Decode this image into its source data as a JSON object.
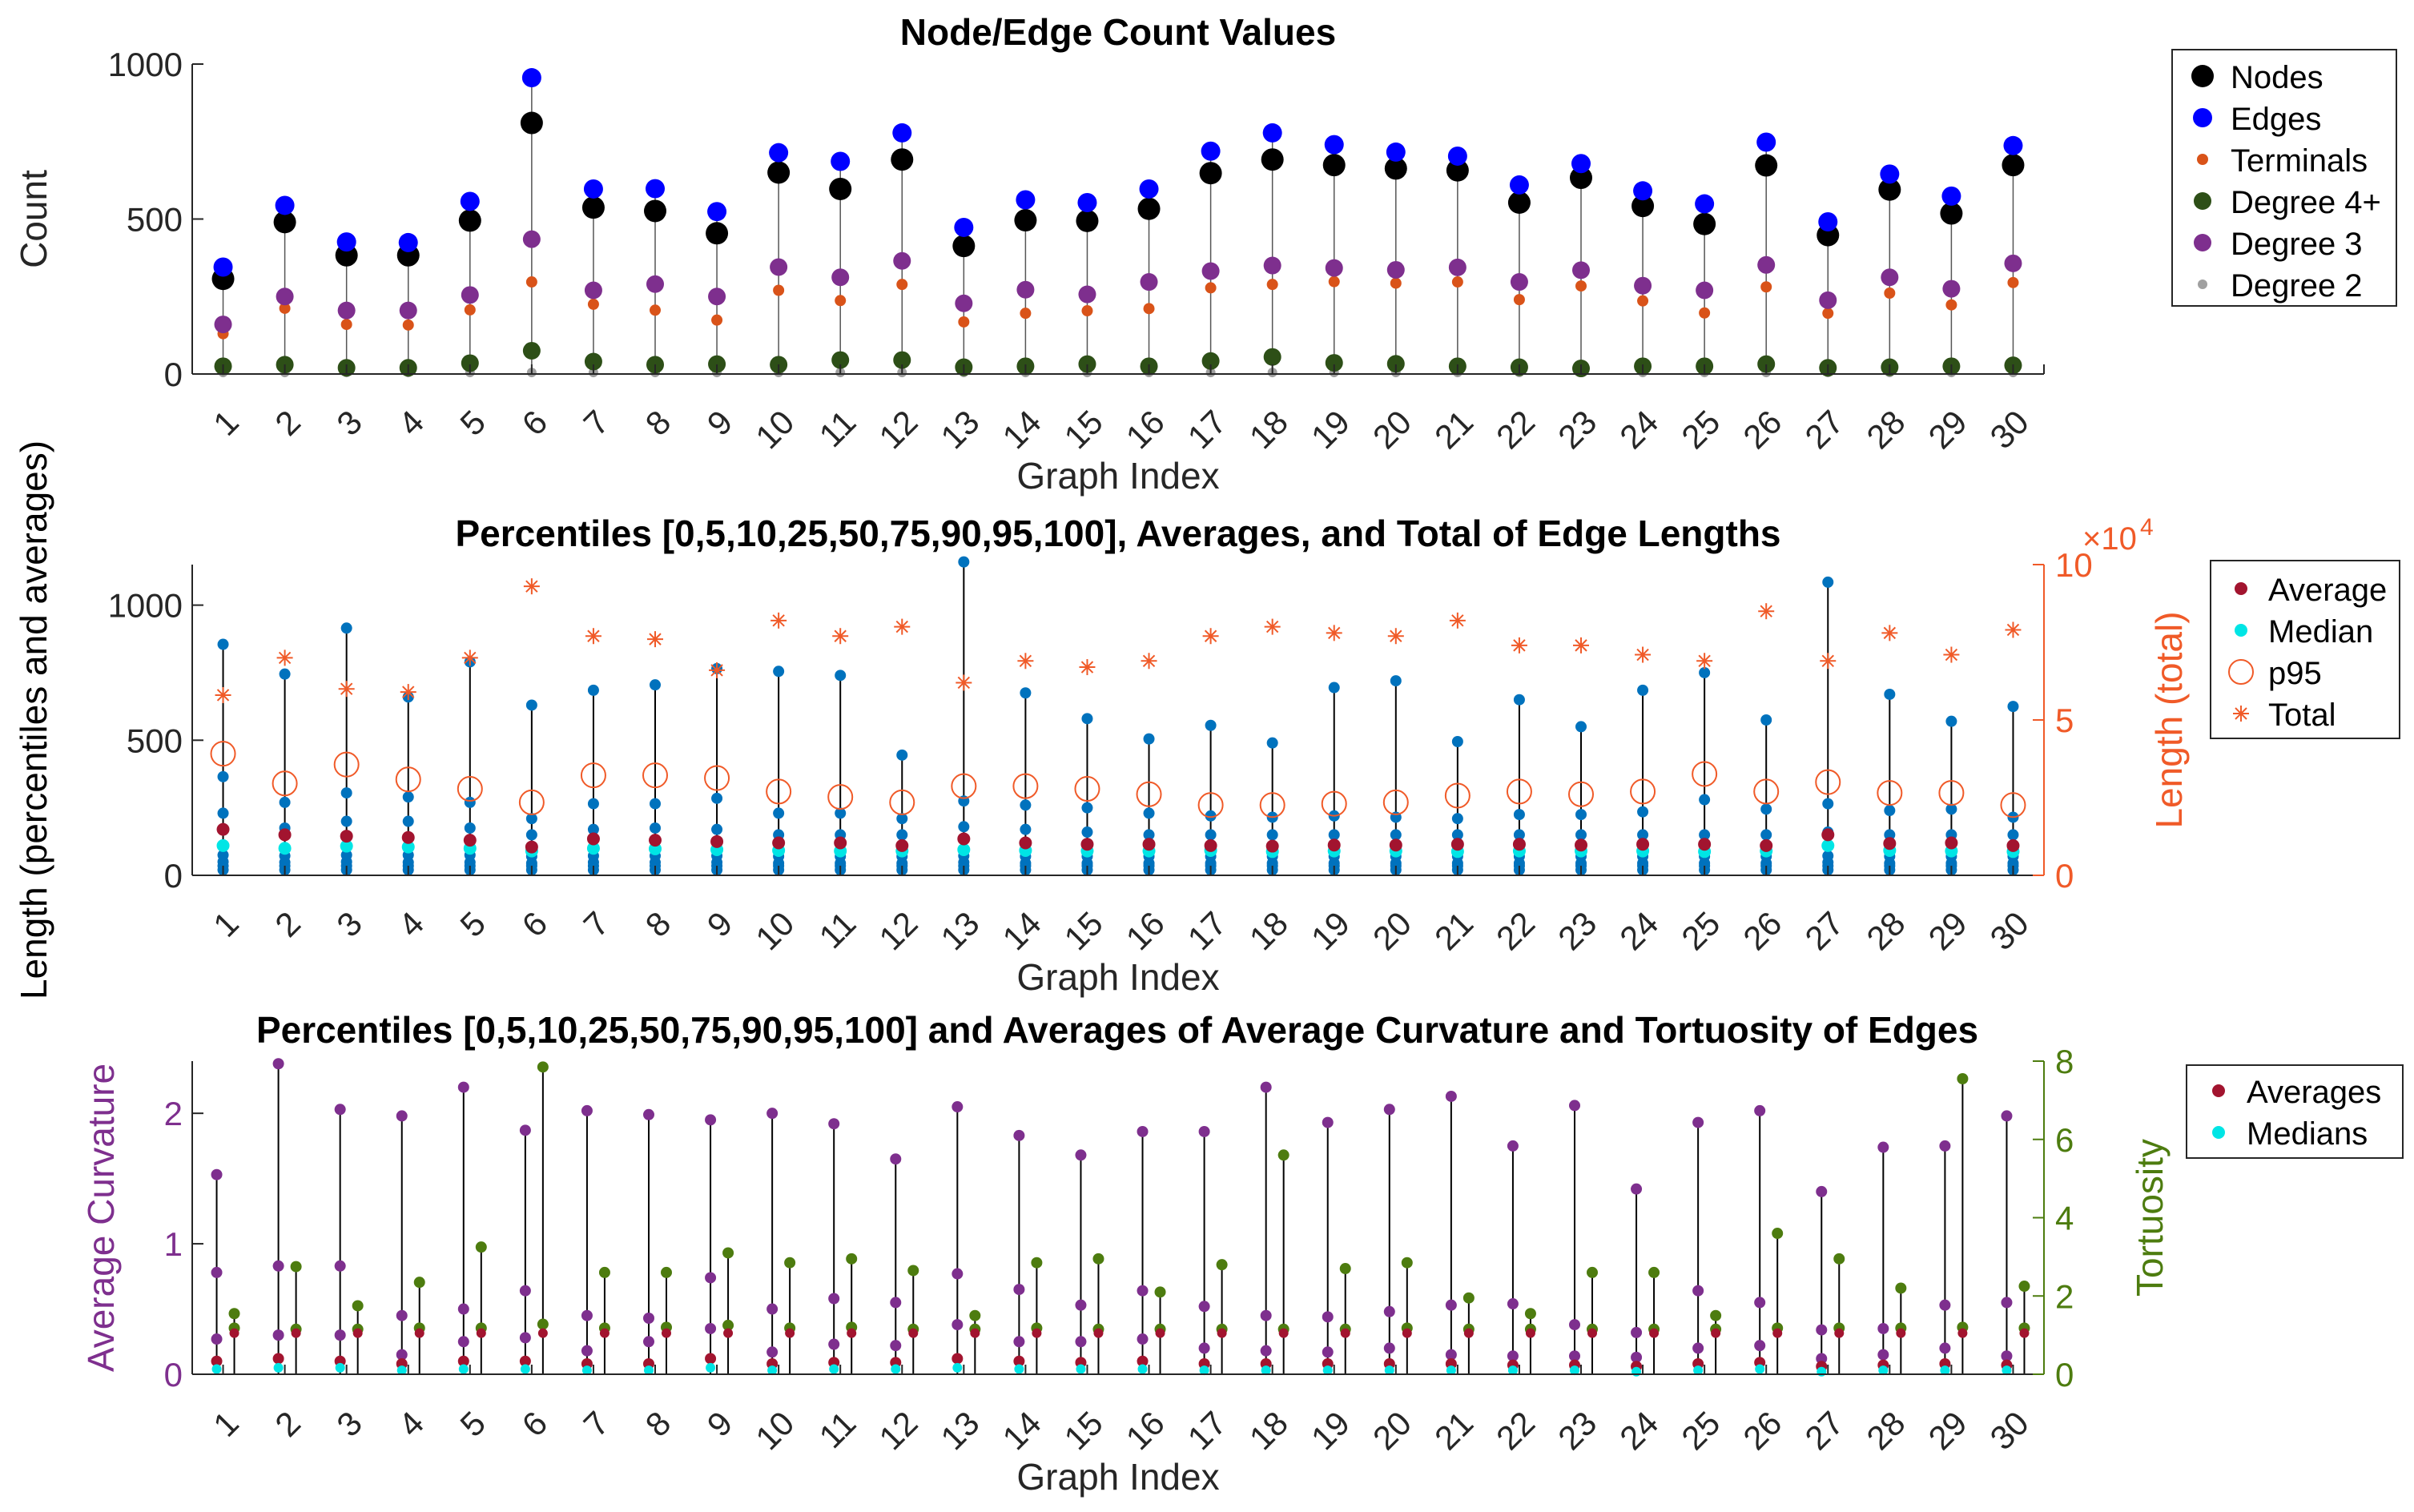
{
  "chart_data": [
    {
      "type": "scatter",
      "title": "Node/Edge Count Values",
      "xlabel": "Graph Index",
      "ylabel": "Count",
      "ylim": [
        0,
        1000
      ],
      "yticks": [
        0,
        500,
        1000
      ],
      "categories": [
        "1",
        "2",
        "3",
        "4",
        "5",
        "6",
        "7",
        "8",
        "9",
        "10",
        "11",
        "12",
        "13",
        "14",
        "15",
        "16",
        "17",
        "18",
        "19",
        "20",
        "21",
        "22",
        "23",
        "24",
        "25",
        "26",
        "27",
        "28",
        "29",
        "30"
      ],
      "legend": [
        "Nodes",
        "Edges",
        "Terminals",
        "Degree 4+",
        "Degree 3",
        "Degree 2"
      ],
      "series": [
        {
          "name": "Nodes",
          "color": "#000000",
          "values": [
            307,
            490,
            383,
            383,
            495,
            810,
            537,
            526,
            454,
            650,
            597,
            692,
            413,
            496,
            494,
            533,
            648,
            692,
            674,
            663,
            657,
            553,
            633,
            542,
            484,
            673,
            448,
            595,
            518,
            674
          ]
        },
        {
          "name": "Edges",
          "color": "#0000ff",
          "values": [
            345,
            544,
            426,
            424,
            557,
            956,
            597,
            598,
            524,
            714,
            686,
            778,
            473,
            562,
            553,
            597,
            719,
            778,
            740,
            716,
            703,
            610,
            679,
            591,
            549,
            748,
            491,
            645,
            574,
            737
          ]
        },
        {
          "name": "Terminals",
          "color": "#d95319",
          "values": [
            130,
            212,
            160,
            158,
            207,
            297,
            225,
            206,
            174,
            270,
            237,
            289,
            168,
            196,
            204,
            211,
            278,
            289,
            298,
            293,
            297,
            240,
            284,
            236,
            197,
            281,
            196,
            261,
            223,
            295
          ]
        },
        {
          "name": "Degree 4+",
          "color": "#2d4f17",
          "values": [
            25,
            30,
            20,
            20,
            35,
            75,
            40,
            30,
            32,
            30,
            45,
            45,
            22,
            25,
            32,
            25,
            42,
            55,
            36,
            33,
            25,
            22,
            18,
            25,
            25,
            32,
            20,
            22,
            25,
            28
          ]
        },
        {
          "name": "Degree 3",
          "color": "#7e2f8e",
          "values": [
            160,
            250,
            205,
            205,
            255,
            435,
            270,
            290,
            250,
            345,
            312,
            365,
            228,
            272,
            257,
            297,
            332,
            350,
            342,
            336,
            344,
            297,
            335,
            285,
            270,
            352,
            238,
            312,
            275,
            357
          ]
        },
        {
          "name": "Degree 2",
          "color": "#a0a0a0",
          "values": [
            5,
            5,
            5,
            5,
            5,
            5,
            5,
            5,
            5,
            5,
            5,
            5,
            5,
            5,
            5,
            5,
            5,
            5,
            5,
            5,
            5,
            5,
            5,
            5,
            5,
            5,
            5,
            5,
            5,
            5
          ]
        }
      ]
    },
    {
      "type": "scatter",
      "title": "Percentiles [0,5,10,25,50,75,90,95,100], Averages, and Total of Edge Lengths",
      "xlabel": "Graph Index",
      "ylabel": "Length (percentiles and averages)",
      "ylabel_right": "Length (total)",
      "ylim": [
        0,
        1150
      ],
      "yticks": [
        0,
        500,
        1000
      ],
      "ylim_right": [
        0,
        10
      ],
      "yticks_right": [
        0,
        5,
        10
      ],
      "right_exponent": "×10",
      "right_exponent_power": "4",
      "categories": [
        "1",
        "2",
        "3",
        "4",
        "5",
        "6",
        "7",
        "8",
        "9",
        "10",
        "11",
        "12",
        "13",
        "14",
        "15",
        "16",
        "17",
        "18",
        "19",
        "20",
        "21",
        "22",
        "23",
        "24",
        "25",
        "26",
        "27",
        "28",
        "29",
        "30"
      ],
      "legend": [
        "Average",
        "Median",
        "p95",
        "Total"
      ],
      "percentile_marker_color": "#0072bd",
      "series": [
        {
          "name": "p0",
          "values": [
            20,
            20,
            20,
            20,
            20,
            20,
            20,
            20,
            20,
            20,
            20,
            20,
            20,
            20,
            20,
            20,
            20,
            20,
            20,
            20,
            20,
            20,
            20,
            20,
            20,
            20,
            20,
            20,
            20,
            20
          ]
        },
        {
          "name": "p5",
          "values": [
            35,
            35,
            35,
            35,
            35,
            35,
            35,
            35,
            35,
            35,
            35,
            35,
            35,
            35,
            35,
            35,
            35,
            35,
            35,
            35,
            35,
            35,
            35,
            35,
            35,
            35,
            35,
            35,
            35,
            35
          ]
        },
        {
          "name": "p10",
          "values": [
            50,
            48,
            50,
            48,
            48,
            45,
            48,
            48,
            48,
            45,
            45,
            45,
            48,
            45,
            45,
            45,
            45,
            45,
            45,
            45,
            45,
            45,
            45,
            45,
            45,
            45,
            48,
            45,
            45,
            45
          ]
        },
        {
          "name": "p25",
          "values": [
            75,
            72,
            75,
            75,
            75,
            70,
            72,
            72,
            72,
            70,
            70,
            70,
            72,
            70,
            70,
            70,
            70,
            70,
            70,
            70,
            70,
            70,
            70,
            70,
            70,
            70,
            72,
            70,
            70,
            70
          ]
        },
        {
          "name": "p50",
          "color": "#00e5e5",
          "values": [
            110,
            100,
            108,
            105,
            100,
            90,
            100,
            98,
            95,
            92,
            90,
            90,
            95,
            92,
            90,
            90,
            92,
            88,
            90,
            90,
            88,
            90,
            90,
            90,
            88,
            90,
            110,
            92,
            90,
            88
          ]
        },
        {
          "name": "p75",
          "values": [
            230,
            175,
            200,
            200,
            175,
            150,
            170,
            175,
            170,
            150,
            150,
            150,
            180,
            170,
            160,
            150,
            150,
            150,
            150,
            150,
            150,
            150,
            150,
            150,
            150,
            150,
            160,
            150,
            150,
            150
          ]
        },
        {
          "name": "p90",
          "values": [
            365,
            270,
            305,
            290,
            270,
            210,
            265,
            265,
            285,
            230,
            230,
            210,
            275,
            260,
            250,
            230,
            220,
            215,
            220,
            215,
            210,
            225,
            225,
            235,
            280,
            245,
            265,
            240,
            245,
            215
          ]
        },
        {
          "name": "p95",
          "color": "#f05a28",
          "values": [
            450,
            340,
            410,
            355,
            320,
            270,
            370,
            370,
            360,
            310,
            290,
            270,
            330,
            330,
            320,
            300,
            260,
            260,
            265,
            270,
            295,
            310,
            300,
            310,
            375,
            310,
            345,
            305,
            305,
            260
          ]
        },
        {
          "name": "p100",
          "values": [
            855,
            745,
            915,
            660,
            790,
            630,
            685,
            705,
            765,
            755,
            740,
            445,
            1160,
            675,
            580,
            505,
            555,
            490,
            695,
            720,
            495,
            650,
            550,
            685,
            750,
            575,
            1085,
            670,
            570,
            625
          ]
        },
        {
          "name": "Average",
          "color": "#a2142f",
          "values": [
            170,
            150,
            145,
            140,
            130,
            105,
            135,
            130,
            125,
            120,
            120,
            110,
            135,
            120,
            115,
            115,
            110,
            108,
            112,
            112,
            115,
            115,
            112,
            115,
            115,
            110,
            150,
            118,
            120,
            110
          ]
        },
        {
          "name": "Total",
          "axis": "right",
          "color": "#f05a28",
          "values": [
            5.8,
            7.0,
            6.0,
            5.9,
            7.0,
            9.3,
            7.7,
            7.6,
            6.6,
            8.2,
            7.7,
            8.0,
            6.2,
            6.9,
            6.7,
            6.9,
            7.7,
            8.0,
            7.8,
            7.7,
            8.2,
            7.4,
            7.4,
            7.1,
            6.9,
            8.5,
            6.9,
            7.8,
            7.1,
            7.9
          ]
        }
      ]
    },
    {
      "type": "scatter",
      "title": "Percentiles [0,5,10,25,50,75,90,95,100] and Averages of Average Curvature and Tortuosity of Edges",
      "xlabel": "Graph Index",
      "ylabel": "Average Curvature",
      "ylabel_right": "Tortuosity",
      "ylim": [
        0,
        2.4
      ],
      "yticks": [
        0,
        1,
        2
      ],
      "ylim_right": [
        0,
        8
      ],
      "yticks_right": [
        0,
        2,
        4,
        6,
        8
      ],
      "categories": [
        "1",
        "2",
        "3",
        "4",
        "5",
        "6",
        "7",
        "8",
        "9",
        "10",
        "11",
        "12",
        "13",
        "14",
        "15",
        "16",
        "17",
        "18",
        "19",
        "20",
        "21",
        "22",
        "23",
        "24",
        "25",
        "26",
        "27",
        "28",
        "29",
        "30"
      ],
      "legend": [
        "Averages",
        "Medians"
      ],
      "curvature_color": "#7e2f8e",
      "tortuosity_color": "#4d7c0f",
      "series": [
        {
          "name": "Curvature max",
          "values": [
            1.53,
            2.38,
            2.03,
            1.98,
            2.2,
            1.87,
            2.02,
            1.99,
            1.95,
            2.0,
            1.92,
            1.65,
            2.05,
            1.83,
            1.68,
            1.86,
            1.86,
            2.2,
            1.93,
            2.03,
            2.13,
            1.75,
            2.06,
            1.42,
            1.93,
            2.02,
            1.4,
            1.74,
            1.75,
            1.98
          ]
        },
        {
          "name": "Curvature p95",
          "values": [
            0.78,
            0.83,
            0.83,
            0.45,
            0.5,
            0.64,
            0.45,
            0.43,
            0.74,
            0.5,
            0.58,
            0.55,
            0.77,
            0.65,
            0.53,
            0.64,
            0.52,
            0.45,
            0.44,
            0.48,
            0.53,
            0.54,
            0.38,
            0.32,
            0.64,
            0.55,
            0.34,
            0.35,
            0.53,
            0.55
          ]
        },
        {
          "name": "Curvature p90",
          "values": [
            0.27,
            0.3,
            0.3,
            0.15,
            0.25,
            0.28,
            0.18,
            0.25,
            0.35,
            0.17,
            0.23,
            0.22,
            0.38,
            0.25,
            0.25,
            0.27,
            0.2,
            0.18,
            0.17,
            0.2,
            0.15,
            0.14,
            0.14,
            0.13,
            0.2,
            0.22,
            0.12,
            0.15,
            0.2,
            0.14
          ]
        },
        {
          "name": "Averages",
          "color": "#a2142f",
          "values": [
            0.1,
            0.12,
            0.1,
            0.08,
            0.1,
            0.1,
            0.08,
            0.08,
            0.12,
            0.08,
            0.09,
            0.09,
            0.12,
            0.1,
            0.09,
            0.1,
            0.08,
            0.08,
            0.08,
            0.08,
            0.08,
            0.07,
            0.07,
            0.06,
            0.08,
            0.09,
            0.06,
            0.07,
            0.08,
            0.07
          ]
        },
        {
          "name": "Medians",
          "color": "#00e5e5",
          "values": [
            0.04,
            0.05,
            0.05,
            0.03,
            0.04,
            0.04,
            0.03,
            0.03,
            0.05,
            0.03,
            0.04,
            0.04,
            0.05,
            0.04,
            0.04,
            0.04,
            0.03,
            0.03,
            0.03,
            0.03,
            0.03,
            0.03,
            0.03,
            0.02,
            0.03,
            0.04,
            0.02,
            0.03,
            0.03,
            0.03
          ]
        },
        {
          "name": "Tortuosity max",
          "axis": "right",
          "values": [
            1.55,
            2.75,
            1.75,
            2.35,
            3.25,
            7.85,
            2.6,
            2.6,
            3.1,
            2.85,
            2.95,
            2.65,
            1.5,
            2.85,
            2.95,
            2.1,
            2.8,
            5.6,
            2.7,
            2.85,
            1.95,
            1.55,
            2.6,
            2.6,
            1.5,
            3.6,
            2.95,
            2.2,
            7.55,
            2.25
          ]
        },
        {
          "name": "Tortuosity p95",
          "axis": "right",
          "values": [
            1.18,
            1.15,
            1.15,
            1.18,
            1.18,
            1.28,
            1.18,
            1.2,
            1.25,
            1.18,
            1.2,
            1.15,
            1.15,
            1.18,
            1.15,
            1.15,
            1.15,
            1.15,
            1.15,
            1.18,
            1.15,
            1.15,
            1.15,
            1.15,
            1.15,
            1.18,
            1.18,
            1.18,
            1.2,
            1.18
          ]
        },
        {
          "name": "Tortuosity median",
          "axis": "right",
          "values": [
            1.05,
            1.05,
            1.05,
            1.05,
            1.05,
            1.05,
            1.05,
            1.05,
            1.05,
            1.05,
            1.05,
            1.05,
            1.05,
            1.05,
            1.05,
            1.05,
            1.05,
            1.05,
            1.05,
            1.05,
            1.05,
            1.05,
            1.05,
            1.05,
            1.05,
            1.05,
            1.05,
            1.05,
            1.05,
            1.05
          ]
        }
      ]
    }
  ]
}
